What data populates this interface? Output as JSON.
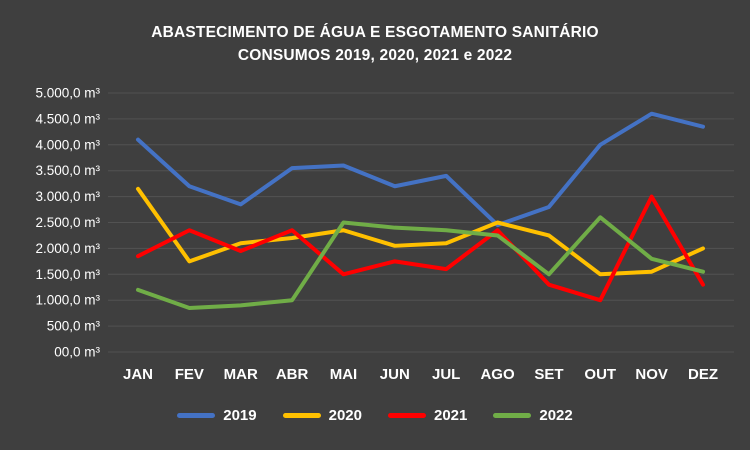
{
  "title": {
    "line1": "ABASTECIMENTO DE ÁGUA E ESGOTAMENTO SANITÁRIO",
    "line2": "CONSUMOS 2019, 2020, 2021 e 2022"
  },
  "colors": {
    "background": "#3F3F3F",
    "text": "#FFFFFF",
    "grid": "rgba(255,255,255,0.10)"
  },
  "chart_data": {
    "type": "line",
    "title": "ABASTECIMENTO DE ÁGUA E ESGOTAMENTO SANITÁRIO CONSUMOS 2019, 2020, 2021 e 2022",
    "categories": [
      "JAN",
      "FEV",
      "MAR",
      "ABR",
      "MAI",
      "JUN",
      "JUL",
      "AGO",
      "SET",
      "OUT",
      "NOV",
      "DEZ"
    ],
    "series": [
      {
        "name": "2019",
        "color": "#4472C4",
        "values": [
          4100,
          3200,
          2850,
          3550,
          3600,
          3200,
          3400,
          2450,
          2800,
          4000,
          4600,
          4350
        ]
      },
      {
        "name": "2020",
        "color": "#FFC000",
        "values": [
          3150,
          1750,
          2100,
          2200,
          2350,
          2050,
          2100,
          2500,
          2250,
          1500,
          1550,
          2000
        ]
      },
      {
        "name": "2021",
        "color": "#FF0000",
        "values": [
          1850,
          2350,
          1950,
          2350,
          1500,
          1750,
          1600,
          2350,
          1300,
          1000,
          3000,
          1300
        ]
      },
      {
        "name": "2022",
        "color": "#70AD47",
        "values": [
          1200,
          850,
          900,
          1000,
          2500,
          2400,
          2350,
          2250,
          1500,
          2600,
          1800,
          1550
        ]
      }
    ],
    "y_ticks": [
      {
        "value": 5000,
        "label": "5.000,0 m³"
      },
      {
        "value": 4500,
        "label": "4.500,0 m³"
      },
      {
        "value": 4000,
        "label": "4.000,0 m³"
      },
      {
        "value": 3500,
        "label": "3.500,0 m³"
      },
      {
        "value": 3000,
        "label": "3.000,0 m³"
      },
      {
        "value": 2500,
        "label": "2.500,0 m³"
      },
      {
        "value": 2000,
        "label": "2.000,0 m³"
      },
      {
        "value": 1500,
        "label": "1.500,0 m³"
      },
      {
        "value": 1000,
        "label": "1.000,0 m³"
      },
      {
        "value": 500,
        "label": "500,0 m³"
      },
      {
        "value": 0,
        "label": "00,0 m³"
      }
    ],
    "ylim": [
      0,
      5000
    ],
    "xlabel": "",
    "ylabel": "",
    "grid": true,
    "legend_position": "bottom"
  }
}
